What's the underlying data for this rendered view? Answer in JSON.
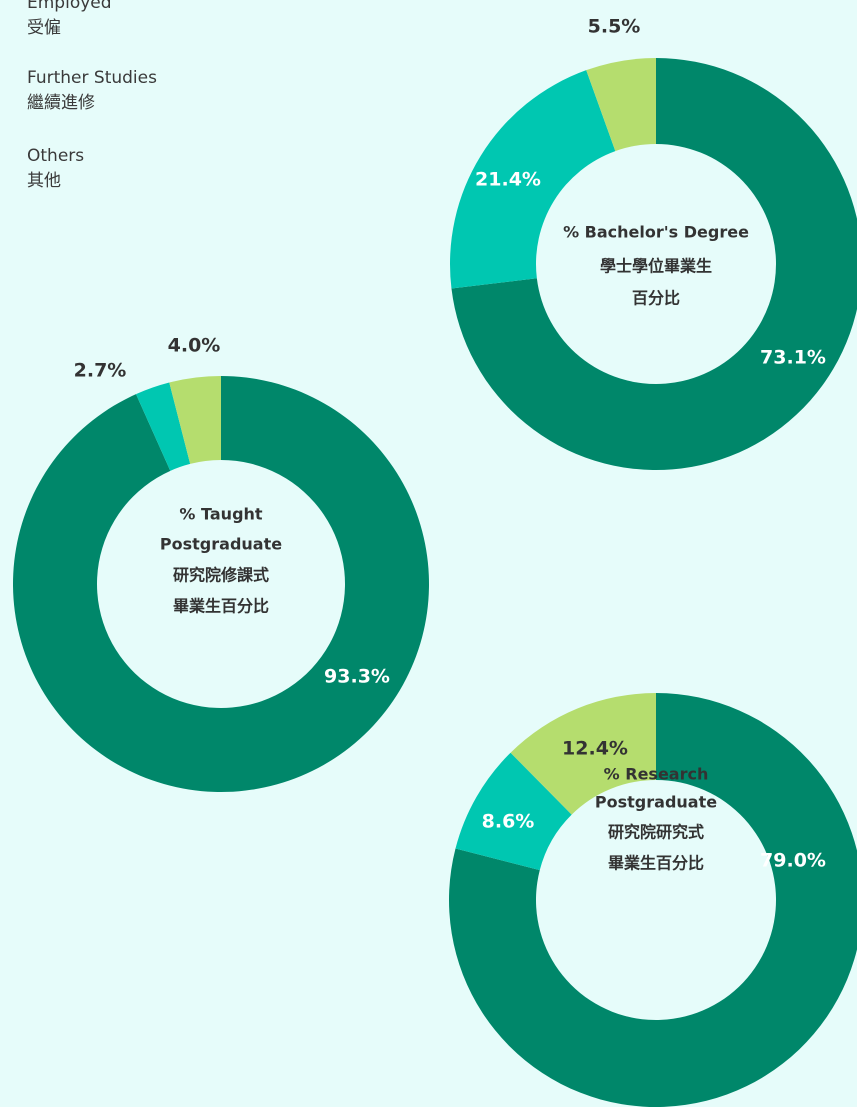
{
  "legend": {
    "items": [
      {
        "label": "Employed",
        "label_zh": "受僱"
      },
      {
        "label": "Further Studies",
        "label_zh": "繼續進修"
      },
      {
        "label": "Others",
        "label_zh": "其他"
      }
    ]
  },
  "chart_data": [
    {
      "type": "pie",
      "donut": true,
      "title": [
        "% Bachelor's Degree",
        "學士學位畢業生",
        "百分比"
      ],
      "values": [
        73.1,
        21.4,
        5.5
      ],
      "value_labels": [
        "73.1%",
        "21.4%",
        "5.5%"
      ],
      "colors": [
        "#00876a",
        "#00c7b1",
        "#b5dd6e"
      ]
    },
    {
      "type": "pie",
      "donut": true,
      "title": [
        "% Taught",
        "Postgraduate",
        "研究院修課式",
        "畢業生百分比"
      ],
      "values": [
        93.3,
        2.7,
        4.0
      ],
      "value_labels": [
        "93.3%",
        "2.7%",
        "4.0%"
      ],
      "colors": [
        "#00876a",
        "#00c7b1",
        "#b5dd6e"
      ]
    },
    {
      "type": "pie",
      "donut": true,
      "title": [
        "% Research",
        "Postgraduate",
        "研究院研究式",
        "畢業生百分比"
      ],
      "values": [
        79.0,
        8.6,
        12.4
      ],
      "value_labels": [
        "79.0%",
        "8.6%",
        "12.4%"
      ],
      "colors": [
        "#00876a",
        "#00c7b1",
        "#b5dd6e"
      ]
    }
  ]
}
